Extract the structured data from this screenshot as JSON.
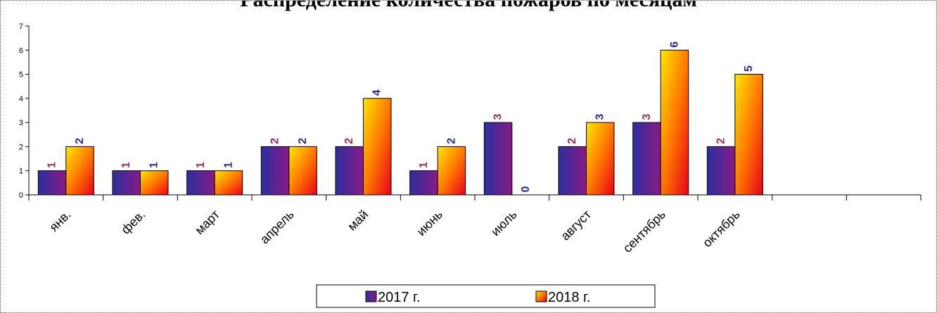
{
  "chart_data": {
    "type": "bar",
    "title": "Распределение количества пожаров по месяцам",
    "categories": [
      "янв.",
      "фев.",
      "март",
      "апрель",
      "май",
      "июнь",
      "июль",
      "август",
      "сентябрь",
      "октябрь",
      "",
      ""
    ],
    "series": [
      {
        "name": "2017 г.",
        "values": [
          1,
          1,
          1,
          2,
          2,
          1,
          3,
          2,
          3,
          2,
          null,
          null
        ],
        "gradient": [
          "#2b2f9e",
          "#8a1a88"
        ],
        "label_color": "#9b2c5b"
      },
      {
        "name": "2018 г.",
        "values": [
          2,
          1,
          1,
          2,
          4,
          2,
          0,
          3,
          6,
          5,
          null,
          null
        ],
        "gradient": [
          "#ffe800",
          "#ff7a00",
          "#e8001c"
        ],
        "label_color": "#2c2c8a"
      }
    ],
    "ylim": [
      0,
      7
    ],
    "yticks": [
      0,
      1,
      2,
      3,
      4,
      5,
      6,
      7
    ],
    "xlabel": "",
    "ylabel": "",
    "grid": false,
    "legend_position": "bottom-center"
  }
}
